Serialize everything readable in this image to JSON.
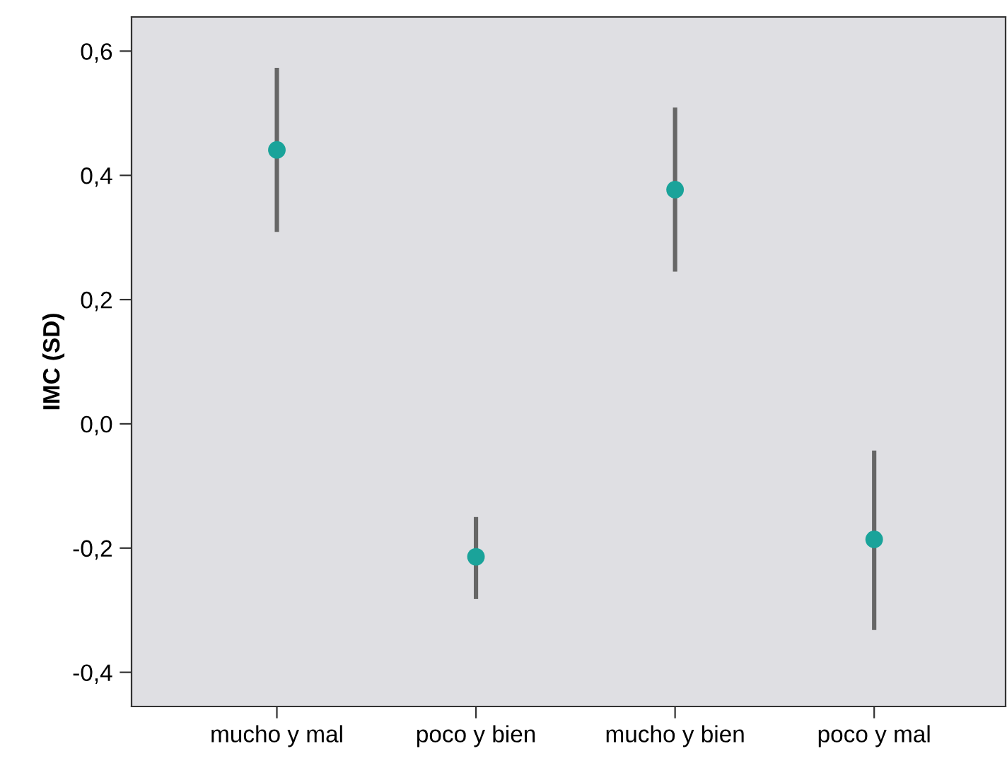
{
  "chart_data": {
    "type": "scatter",
    "ylabel": "IMC (SD)",
    "categories": [
      "mucho y mal",
      "poco y bien",
      "mucho y bien",
      "poco y mal"
    ],
    "series": [
      {
        "color": "#1aa39a",
        "values": [
          0.441,
          -0.214,
          0.377,
          -0.186
        ],
        "errors": [
          [
            0.309,
            0.573
          ],
          [
            -0.282,
            -0.15
          ],
          [
            0.245,
            0.509
          ],
          [
            -0.332,
            -0.043
          ]
        ]
      }
    ],
    "ylim": [
      -0.455,
      0.655
    ],
    "yticks": [
      {
        "value": -0.4,
        "label": "-0,4"
      },
      {
        "value": -0.2,
        "label": "-0,2"
      },
      {
        "value": 0.0,
        "label": "0,0"
      },
      {
        "value": 0.2,
        "label": "0,2"
      },
      {
        "value": 0.4,
        "label": "0,4"
      },
      {
        "value": 0.6,
        "label": "0,6"
      }
    ],
    "grid": false,
    "marker": "circle"
  }
}
